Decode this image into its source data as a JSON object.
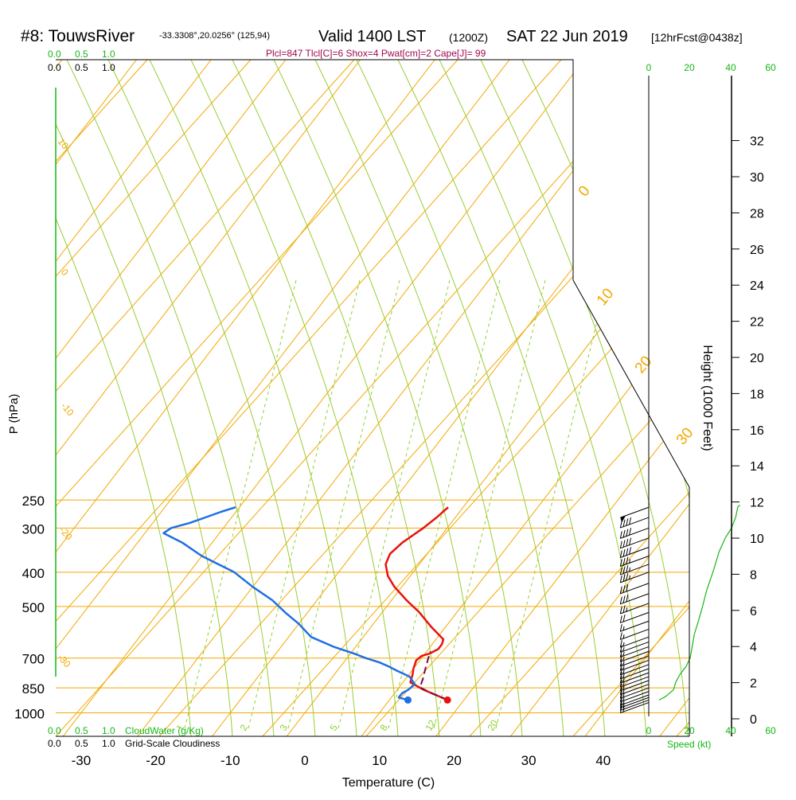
{
  "header": {
    "station": "#8: TouwsRiver",
    "coords": "-33.3308°,20.0256° (125,94)",
    "valid": "Valid 1400 LST",
    "zulu": "(1200Z)",
    "date": "SAT 22 Jun 2019",
    "forecast": "[12hrFcst@0438z]",
    "params": "Plcl=847 Tlcl[C]=6 Shox=4 Pwat[cm]=2 Cape[J]= 99"
  },
  "colors": {
    "isotherm": "#f2a900",
    "dry_adiabat": "#9acd32",
    "moist_adiabat": "#a3d62a",
    "mixing_ratio": "#8ed12e",
    "temperature": "#e8120c",
    "dewpoint": "#1f6fe5",
    "parcel": "#7a0b4a",
    "params_text": "#a0094f",
    "green_label": "#16b716",
    "axis": "#000000"
  },
  "chart_data": {
    "type": "line",
    "title": "#8: TouwsRiver Valid 1400 LST (1200Z) SAT 22 Jun 2019",
    "xlabel": "Temperature (C)",
    "ylabel": "P (hPa)",
    "y2label": "Height (1000 Feet)",
    "xlim": [
      -35,
      40
    ],
    "ylim_hpa": [
      1000,
      250
    ],
    "x_ticks": [
      -30,
      -20,
      -10,
      0,
      10,
      20,
      30,
      40
    ],
    "p_ticks": [
      250,
      300,
      400,
      500,
      700,
      850,
      1000
    ],
    "height_ticks_kft": [
      0,
      2,
      4,
      6,
      8,
      10,
      12,
      14,
      16,
      18,
      20,
      22,
      24,
      26,
      28,
      30,
      32
    ],
    "isotherm_labels": [
      {
        "text": "0",
        "t": 0
      },
      {
        "text": "10",
        "t": 10
      },
      {
        "text": "20",
        "t": 20
      },
      {
        "text": "30",
        "t": 30
      }
    ],
    "left_isotherm_labels": [
      "10",
      "0",
      "-10",
      "-20",
      "-30"
    ],
    "mixing_ratio_labels": [
      "1",
      "2",
      "3",
      "5",
      "8",
      "12",
      "20"
    ],
    "cloud_scale_top_green": [
      "0.0",
      "0.5",
      "1.0"
    ],
    "cloud_scale_top_black": [
      "0.0",
      "0.5",
      "1.0"
    ],
    "cloud_scale_bottom_green": [
      "0.0",
      "0.5",
      "1.0"
    ],
    "cloud_scale_bottom_black": [
      "0.0",
      "0.5",
      "1.0"
    ],
    "cloudwater_label": "CloudWater (g/Kg)",
    "cloudiness_label": "Grid-Scale Cloudiness",
    "speed_ticks": [
      "0",
      "20",
      "40",
      "60"
    ],
    "speed_label": "Speed (kt)",
    "series": [
      {
        "name": "Temperature",
        "points": [
          [
            17.8,
            920
          ],
          [
            13.5,
            860
          ],
          [
            11.0,
            820
          ],
          [
            10.5,
            780
          ],
          [
            10.0,
            750
          ],
          [
            9.5,
            710
          ],
          [
            9.8,
            690
          ],
          [
            10.6,
            680
          ],
          [
            11.3,
            660
          ],
          [
            11.3,
            640
          ],
          [
            11.0,
            620
          ],
          [
            8.0,
            570
          ],
          [
            5.0,
            520
          ],
          [
            2.0,
            480
          ],
          [
            -1.0,
            440
          ],
          [
            -3.0,
            410
          ],
          [
            -4.5,
            380
          ],
          [
            -5.0,
            355
          ],
          [
            -4.5,
            330
          ],
          [
            -3.2,
            300
          ],
          [
            -2.5,
            280
          ],
          [
            -2.0,
            262
          ]
        ]
      },
      {
        "name": "Dewpoint",
        "points": [
          [
            12.5,
            920
          ],
          [
            11.0,
            905
          ],
          [
            11.0,
            880
          ],
          [
            11.5,
            860
          ],
          [
            11.8,
            830
          ],
          [
            10.3,
            790
          ],
          [
            8.0,
            760
          ],
          [
            6.5,
            740
          ],
          [
            4.8,
            720
          ],
          [
            2.5,
            700
          ],
          [
            0.5,
            680
          ],
          [
            -3.0,
            650
          ],
          [
            -7.0,
            610
          ],
          [
            -10.0,
            560
          ],
          [
            -13.0,
            520
          ],
          [
            -16.0,
            480
          ],
          [
            -20.0,
            440
          ],
          [
            -24.0,
            400
          ],
          [
            -30.0,
            360
          ],
          [
            -34.0,
            330
          ],
          [
            -37.5,
            310
          ],
          [
            -37.0,
            300
          ],
          [
            -35.0,
            290
          ],
          [
            -33.5,
            280
          ],
          [
            -32.0,
            270
          ],
          [
            -30.5,
            262
          ]
        ]
      },
      {
        "name": "Parcel",
        "points": [
          [
            17.8,
            920
          ],
          [
            15.0,
            880
          ],
          [
            12.8,
            847
          ],
          [
            12.3,
            800
          ],
          [
            11.6,
            750
          ],
          [
            10.9,
            700
          ],
          [
            10.5,
            670
          ]
        ]
      }
    ],
    "surface_markers": [
      {
        "series": "Temperature",
        "t": 17.8,
        "p": 920
      },
      {
        "series": "Dewpoint",
        "t": 12.5,
        "p": 920
      }
    ],
    "wind_barbs": [
      {
        "p": 262,
        "speed_kt": 50
      },
      {
        "p": 280,
        "speed_kt": 40
      },
      {
        "p": 300,
        "speed_kt": 40
      },
      {
        "p": 320,
        "speed_kt": 40
      },
      {
        "p": 340,
        "speed_kt": 40
      },
      {
        "p": 360,
        "speed_kt": 35
      },
      {
        "p": 380,
        "speed_kt": 35
      },
      {
        "p": 400,
        "speed_kt": 35
      },
      {
        "p": 430,
        "speed_kt": 30
      },
      {
        "p": 460,
        "speed_kt": 30
      },
      {
        "p": 490,
        "speed_kt": 25
      },
      {
        "p": 520,
        "speed_kt": 20
      },
      {
        "p": 550,
        "speed_kt": 15
      },
      {
        "p": 580,
        "speed_kt": 15
      },
      {
        "p": 610,
        "speed_kt": 15
      },
      {
        "p": 630,
        "speed_kt": 15
      },
      {
        "p": 650,
        "speed_kt": 15
      },
      {
        "p": 670,
        "speed_kt": 15
      },
      {
        "p": 690,
        "speed_kt": 15
      },
      {
        "p": 710,
        "speed_kt": 15
      },
      {
        "p": 730,
        "speed_kt": 15
      },
      {
        "p": 750,
        "speed_kt": 15
      },
      {
        "p": 770,
        "speed_kt": 15
      },
      {
        "p": 790,
        "speed_kt": 15
      },
      {
        "p": 810,
        "speed_kt": 15
      },
      {
        "p": 830,
        "speed_kt": 15
      },
      {
        "p": 850,
        "speed_kt": 15
      },
      {
        "p": 870,
        "speed_kt": 15
      },
      {
        "p": 890,
        "speed_kt": 15
      },
      {
        "p": 905,
        "speed_kt": 15
      },
      {
        "p": 920,
        "speed_kt": 15
      },
      {
        "p": 935,
        "speed_kt": 15
      }
    ],
    "wind_speed_profile": [
      [
        5,
        920
      ],
      [
        8,
        900
      ],
      [
        10,
        880
      ],
      [
        12,
        860
      ],
      [
        13,
        820
      ],
      [
        15,
        780
      ],
      [
        18,
        740
      ],
      [
        20,
        700
      ],
      [
        21,
        650
      ],
      [
        22,
        600
      ],
      [
        24,
        550
      ],
      [
        26,
        500
      ],
      [
        28,
        450
      ],
      [
        31,
        400
      ],
      [
        34,
        350
      ],
      [
        37,
        320
      ],
      [
        40,
        300
      ],
      [
        42,
        280
      ],
      [
        43,
        262
      ],
      [
        44,
        258
      ]
    ]
  }
}
